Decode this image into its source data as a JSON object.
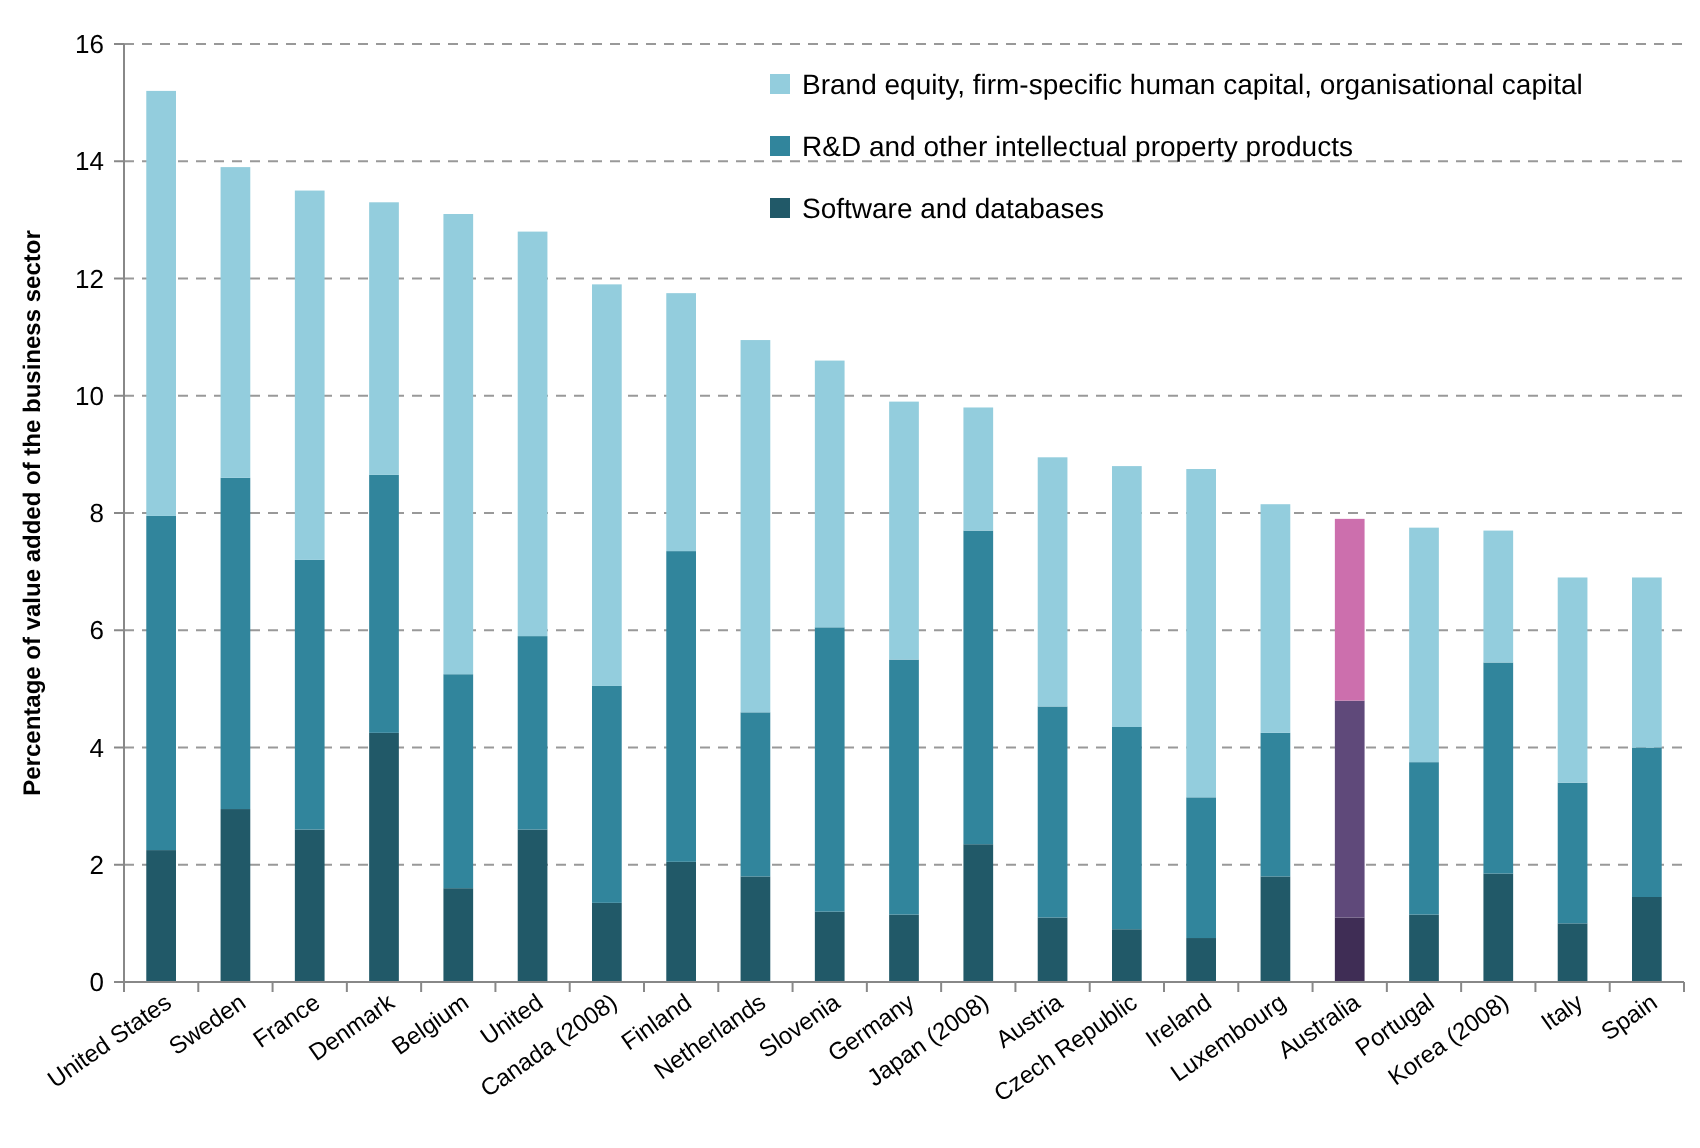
{
  "chart_data": {
    "type": "bar",
    "stacked": true,
    "ylabel": "Percentage of value added of the business sector",
    "categories": [
      "United States",
      "Sweden",
      "France",
      "Denmark",
      "Belgium",
      "United",
      "Canada (2008)",
      "Finland",
      "Netherlands",
      "Slovenia",
      "Germany",
      "Japan (2008)",
      "Austria",
      "Czech Republic",
      "Ireland",
      "Luxembourg",
      "Australia",
      "Portugal",
      "Korea (2008)",
      "Italy",
      "Spain"
    ],
    "series": [
      {
        "name": "Software and databases",
        "color": "#215968",
        "colors": [
          "#215968",
          "#215968",
          "#215968",
          "#215968",
          "#215968",
          "#215968",
          "#215968",
          "#215968",
          "#215968",
          "#215968",
          "#215968",
          "#215968",
          "#215968",
          "#215968",
          "#215968",
          "#215968",
          "#3f2d55",
          "#215968",
          "#215968",
          "#215968",
          "#215968"
        ],
        "values": [
          2.25,
          2.95,
          2.6,
          4.25,
          1.6,
          2.6,
          1.35,
          2.05,
          1.8,
          1.2,
          1.15,
          2.35,
          1.1,
          0.9,
          0.75,
          1.8,
          1.1,
          1.15,
          1.85,
          1.0,
          1.45
        ]
      },
      {
        "name": "R&D and other intellectual property products",
        "color": "#31859c",
        "colors": [
          "#31859c",
          "#31859c",
          "#31859c",
          "#31859c",
          "#31859c",
          "#31859c",
          "#31859c",
          "#31859c",
          "#31859c",
          "#31859c",
          "#31859c",
          "#31859c",
          "#31859c",
          "#31859c",
          "#31859c",
          "#31859c",
          "#5f497a",
          "#31859c",
          "#31859c",
          "#31859c",
          "#31859c"
        ],
        "values": [
          5.7,
          5.65,
          4.6,
          4.4,
          3.65,
          3.3,
          3.7,
          5.3,
          2.8,
          4.85,
          4.35,
          5.35,
          3.6,
          3.45,
          2.4,
          2.45,
          3.7,
          2.6,
          3.6,
          2.4,
          2.55
        ]
      },
      {
        "name": "Brand equity, firm-specific human capital, organisational capital",
        "color": "#93cddd",
        "colors": [
          "#93cddd",
          "#93cddd",
          "#93cddd",
          "#93cddd",
          "#93cddd",
          "#93cddd",
          "#93cddd",
          "#93cddd",
          "#93cddd",
          "#93cddd",
          "#93cddd",
          "#93cddd",
          "#93cddd",
          "#93cddd",
          "#93cddd",
          "#93cddd",
          "#cc6fad",
          "#93cddd",
          "#93cddd",
          "#93cddd",
          "#93cddd"
        ],
        "values": [
          7.25,
          5.3,
          6.3,
          4.65,
          7.85,
          6.9,
          6.85,
          4.4,
          6.35,
          4.55,
          4.4,
          2.1,
          4.25,
          4.45,
          5.6,
          3.9,
          3.1,
          4.0,
          2.25,
          3.5,
          2.9
        ]
      }
    ],
    "ylim": [
      0,
      16
    ],
    "yticks": [
      0,
      2,
      4,
      6,
      8,
      10,
      12,
      14,
      16
    ],
    "grid": "y",
    "legend": "top right"
  }
}
